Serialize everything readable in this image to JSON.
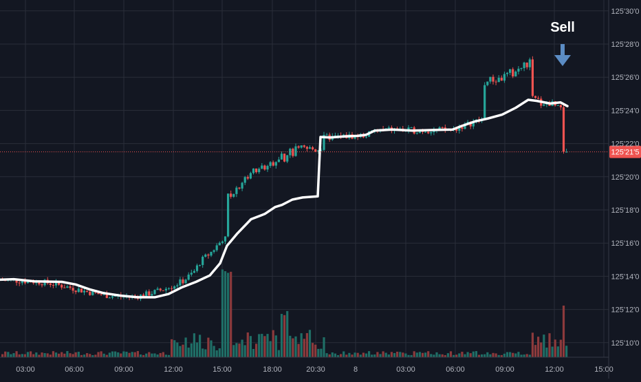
{
  "chart_data": {
    "type": "candlestick",
    "title": "",
    "xlabel": "",
    "ylabel": "",
    "x_tick_labels": [
      "03:00",
      "06:00",
      "09:00",
      "12:00",
      "15:00",
      "18:00",
      "20:30",
      "8",
      "03:00",
      "06:00",
      "09:00",
      "12:00",
      "15:00"
    ],
    "y_tick_labels": [
      "125'10'0",
      "125'12'0",
      "125'14'0",
      "125'16'0",
      "125'18'0",
      "125'20'0",
      "125'22'0",
      "125'24'0",
      "125'26'0",
      "125'28'0",
      "125'30'0"
    ],
    "y_ticks": [
      125.3125,
      125.375,
      125.4375,
      125.5,
      125.5625,
      125.625,
      125.6875,
      125.75,
      125.8125,
      125.875,
      125.9375
    ],
    "ylim": [
      125.285,
      125.958
    ],
    "last_price": {
      "label": "125'21'5",
      "value": 125.671875,
      "color": "#ef5350"
    },
    "annotation": {
      "text": "Sell",
      "color": "#ffffff",
      "arrow_color": "#5b8cc4"
    },
    "colors": {
      "background": "#131722",
      "grid": "#2a2e39",
      "up": "#26a69a",
      "down": "#ef5350",
      "up_volume": "#1f6e66",
      "down_volume": "#8c3a3c",
      "moving_average": "#ffffff",
      "axis_text": "#b2b5be"
    },
    "grid": true,
    "series": [
      {
        "name": "",
        "type": "moving_average",
        "points": [
          [
            0,
            125.431
          ],
          [
            20,
            125.432
          ],
          [
            50,
            125.428
          ],
          [
            90,
            125.427
          ],
          [
            110,
            125.422
          ],
          [
            130,
            125.413
          ],
          [
            150,
            125.406
          ],
          [
            175,
            125.401
          ],
          [
            200,
            125.398
          ],
          [
            225,
            125.398
          ],
          [
            245,
            125.404
          ],
          [
            265,
            125.417
          ],
          [
            285,
            125.427
          ],
          [
            305,
            125.439
          ],
          [
            320,
            125.462
          ],
          [
            330,
            125.495
          ],
          [
            345,
            125.518
          ],
          [
            365,
            125.545
          ],
          [
            385,
            125.555
          ],
          [
            400,
            125.568
          ],
          [
            410,
            125.572
          ],
          [
            425,
            125.582
          ],
          [
            440,
            125.586
          ],
          [
            462,
            125.588
          ],
          [
            466,
            125.7
          ],
          [
            480,
            125.699
          ],
          [
            500,
            125.701
          ],
          [
            520,
            125.702
          ],
          [
            532,
            125.704
          ],
          [
            545,
            125.712
          ],
          [
            570,
            125.714
          ],
          [
            600,
            125.712
          ],
          [
            630,
            125.713
          ],
          [
            658,
            125.714
          ],
          [
            670,
            125.72
          ],
          [
            690,
            125.729
          ],
          [
            710,
            125.735
          ],
          [
            730,
            125.742
          ],
          [
            750,
            125.755
          ],
          [
            768,
            125.77
          ],
          [
            780,
            125.768
          ],
          [
            800,
            125.763
          ],
          [
            815,
            125.765
          ],
          [
            825,
            125.758
          ]
        ]
      }
    ]
  }
}
